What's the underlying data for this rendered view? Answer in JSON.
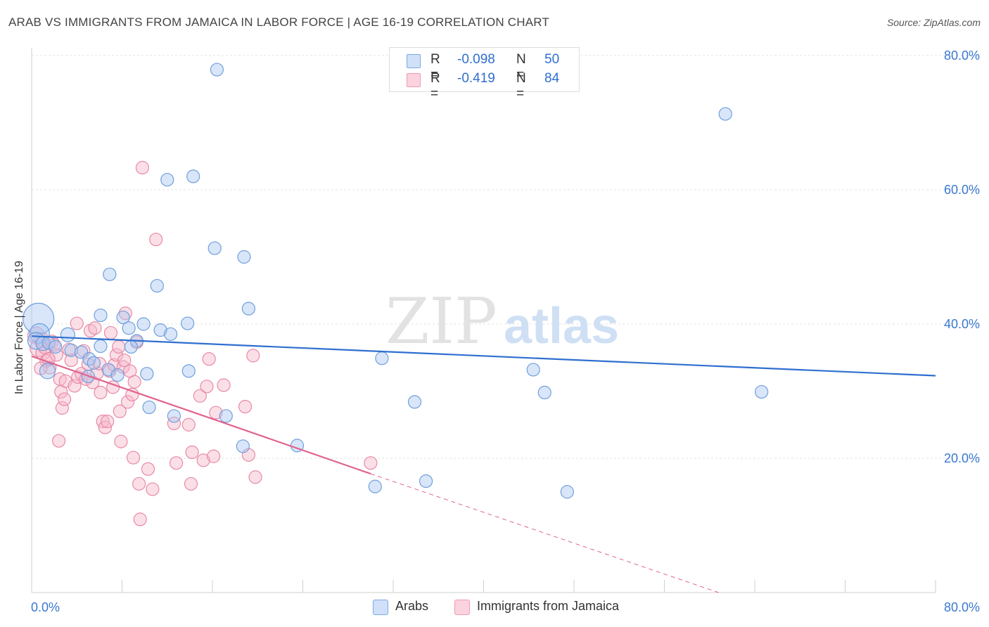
{
  "title": "ARAB VS IMMIGRANTS FROM JAMAICA IN LABOR FORCE | AGE 16-19 CORRELATION CHART",
  "source": "Source: ZipAtlas.com",
  "watermark": {
    "zip": "ZIP",
    "atlas": "atlas"
  },
  "legend": {
    "rows": [
      {
        "r_label": "R =",
        "r_value": "-0.098",
        "n_label": "N =",
        "n_value": "50",
        "color": "#aac8f2"
      },
      {
        "r_label": "R =",
        "r_value": "-0.419",
        "n_label": "N =",
        "n_value": "84",
        "color": "#f7b8ca"
      }
    ]
  },
  "bottom_legend": {
    "arabs": "Arabs",
    "jamaica": "Immigrants from Jamaica"
  },
  "colors": {
    "arabs_fill": "#aac8f2",
    "arabs_stroke": "#6f9fdc",
    "arabs_line": "#2f6fcf",
    "jamaica_fill": "#f7b8ca",
    "jamaica_stroke": "#e88aa7",
    "jamaica_line": "#e0648f",
    "axis_text": "#3a78d0",
    "grid": "#e3e3e3"
  },
  "chart_data": {
    "type": "scatter",
    "title": "ARAB VS IMMIGRANTS FROM JAMAICA IN LABOR FORCE | AGE 16-19 CORRELATION CHART",
    "xlabel": "",
    "ylabel": "In Labor Force | Age 16-19",
    "xlim": [
      0,
      80
    ],
    "ylim": [
      0,
      80
    ],
    "x_tick_labels": [
      "0.0%",
      "80.0%"
    ],
    "y_tick_labels": [
      "20.0%",
      "40.0%",
      "60.0%",
      "80.0%"
    ],
    "y_ticks": [
      20,
      40,
      60,
      80
    ],
    "grid": true,
    "legend_position": "top-center",
    "series": [
      {
        "name": "Arabs",
        "R": -0.098,
        "N": 50,
        "trend": {
          "x": [
            0,
            80
          ],
          "y": [
            38.2,
            32.3
          ],
          "dashed_extension": false
        },
        "points": [
          [
            0.6,
            40.8,
            22
          ],
          [
            0.7,
            38.6,
            14
          ],
          [
            0.4,
            37.5,
            12
          ],
          [
            1.0,
            37.1,
            10
          ],
          [
            1.5,
            37.2,
            9
          ],
          [
            2.1,
            36.6,
            9
          ],
          [
            1.4,
            33.0,
            11
          ],
          [
            3.2,
            38.4,
            10
          ],
          [
            3.5,
            36.1,
            9
          ],
          [
            4.4,
            35.8,
            9
          ],
          [
            5.1,
            34.8,
            9
          ],
          [
            5.5,
            34.2,
            9
          ],
          [
            5.0,
            32.2,
            9
          ],
          [
            6.1,
            36.7,
            9
          ],
          [
            6.8,
            33.2,
            9
          ],
          [
            7.6,
            32.4,
            9
          ],
          [
            6.1,
            41.3,
            9
          ],
          [
            6.9,
            47.4,
            9
          ],
          [
            8.1,
            41.0,
            9
          ],
          [
            8.6,
            39.4,
            9
          ],
          [
            9.3,
            37.5,
            9
          ],
          [
            8.8,
            36.6,
            9
          ],
          [
            9.9,
            40.0,
            9
          ],
          [
            10.2,
            32.6,
            9
          ],
          [
            10.4,
            27.6,
            9
          ],
          [
            11.1,
            45.7,
            9
          ],
          [
            11.4,
            39.1,
            9
          ],
          [
            12.0,
            61.5,
            9
          ],
          [
            12.3,
            38.5,
            9
          ],
          [
            12.6,
            26.3,
            9
          ],
          [
            13.8,
            40.1,
            9
          ],
          [
            13.9,
            33.0,
            9
          ],
          [
            14.3,
            62.0,
            9
          ],
          [
            16.2,
            51.3,
            9
          ],
          [
            16.4,
            77.9,
            9
          ],
          [
            17.2,
            26.3,
            9
          ],
          [
            18.7,
            21.8,
            9
          ],
          [
            18.8,
            50.0,
            9
          ],
          [
            19.2,
            42.3,
            9
          ],
          [
            23.5,
            21.9,
            9
          ],
          [
            30.4,
            15.8,
            9
          ],
          [
            31.0,
            34.9,
            9
          ],
          [
            33.9,
            28.4,
            9
          ],
          [
            34.9,
            16.6,
            9
          ],
          [
            44.4,
            33.2,
            9
          ],
          [
            45.4,
            29.8,
            9
          ],
          [
            47.4,
            15.0,
            9
          ],
          [
            61.4,
            71.3,
            9
          ],
          [
            64.6,
            29.9,
            9
          ]
        ]
      },
      {
        "name": "Immigrants from Jamaica",
        "R": -0.419,
        "N": 84,
        "trend": {
          "x": [
            0,
            30
          ],
          "y": [
            35.2,
            17.7
          ],
          "dashed_to": [
            60.8,
            0
          ]
        },
        "points": [
          [
            0.4,
            38.3,
            12
          ],
          [
            0.6,
            36.4,
            12
          ],
          [
            0.9,
            37.7,
            10
          ],
          [
            1.0,
            35.7,
            10
          ],
          [
            1.2,
            36.6,
            10
          ],
          [
            1.3,
            34.5,
            9
          ],
          [
            1.6,
            33.5,
            9
          ],
          [
            1.8,
            37.4,
            9
          ],
          [
            2.0,
            36.9,
            9
          ],
          [
            2.2,
            35.4,
            9
          ],
          [
            2.5,
            31.8,
            9
          ],
          [
            2.6,
            29.9,
            9
          ],
          [
            2.7,
            27.5,
            9
          ],
          [
            2.9,
            28.8,
            9
          ],
          [
            3.0,
            31.5,
            9
          ],
          [
            3.3,
            36.2,
            9
          ],
          [
            3.5,
            34.6,
            9
          ],
          [
            3.8,
            30.8,
            9
          ],
          [
            4.0,
            40.1,
            9
          ],
          [
            4.1,
            32.1,
            9
          ],
          [
            4.4,
            32.6,
            9
          ],
          [
            4.6,
            36.0,
            9
          ],
          [
            4.8,
            31.8,
            9
          ],
          [
            5.0,
            34.0,
            9
          ],
          [
            5.2,
            39.0,
            9
          ],
          [
            5.4,
            31.3,
            9
          ],
          [
            5.6,
            39.4,
            9
          ],
          [
            5.8,
            32.7,
            9
          ],
          [
            6.0,
            34.1,
            9
          ],
          [
            6.1,
            29.8,
            9
          ],
          [
            6.3,
            25.5,
            9
          ],
          [
            6.5,
            24.6,
            9
          ],
          [
            6.7,
            25.5,
            9
          ],
          [
            6.9,
            33.0,
            9
          ],
          [
            7.0,
            38.7,
            9
          ],
          [
            7.2,
            30.6,
            9
          ],
          [
            7.3,
            33.9,
            9
          ],
          [
            7.5,
            35.4,
            9
          ],
          [
            7.7,
            36.6,
            9
          ],
          [
            7.8,
            27.0,
            9
          ],
          [
            7.9,
            22.5,
            9
          ],
          [
            8.1,
            33.6,
            9
          ],
          [
            8.2,
            34.6,
            9
          ],
          [
            8.3,
            41.6,
            9
          ],
          [
            8.5,
            28.4,
            9
          ],
          [
            8.7,
            33.0,
            9
          ],
          [
            8.9,
            29.5,
            9
          ],
          [
            9.0,
            20.1,
            9
          ],
          [
            9.1,
            31.4,
            9
          ],
          [
            9.3,
            37.3,
            9
          ],
          [
            9.5,
            16.2,
            9
          ],
          [
            9.6,
            10.9,
            9
          ],
          [
            9.8,
            63.3,
            9
          ],
          [
            10.3,
            18.4,
            9
          ],
          [
            10.7,
            15.4,
            9
          ],
          [
            11.0,
            52.6,
            9
          ],
          [
            12.6,
            25.2,
            9
          ],
          [
            12.8,
            19.3,
            9
          ],
          [
            13.9,
            25.0,
            9
          ],
          [
            14.1,
            16.2,
            9
          ],
          [
            14.2,
            20.9,
            9
          ],
          [
            14.9,
            29.3,
            9
          ],
          [
            15.2,
            19.7,
            9
          ],
          [
            15.5,
            30.7,
            9
          ],
          [
            15.7,
            34.8,
            9
          ],
          [
            16.1,
            20.3,
            9
          ],
          [
            16.3,
            26.8,
            9
          ],
          [
            17.0,
            30.9,
            9
          ],
          [
            18.9,
            27.7,
            9
          ],
          [
            19.2,
            20.5,
            9
          ],
          [
            19.6,
            35.3,
            9
          ],
          [
            19.8,
            17.2,
            9
          ],
          [
            2.4,
            22.6,
            9
          ],
          [
            1.5,
            34.8,
            9
          ],
          [
            0.8,
            33.4,
            9
          ],
          [
            30.0,
            19.3,
            9
          ]
        ]
      }
    ]
  }
}
